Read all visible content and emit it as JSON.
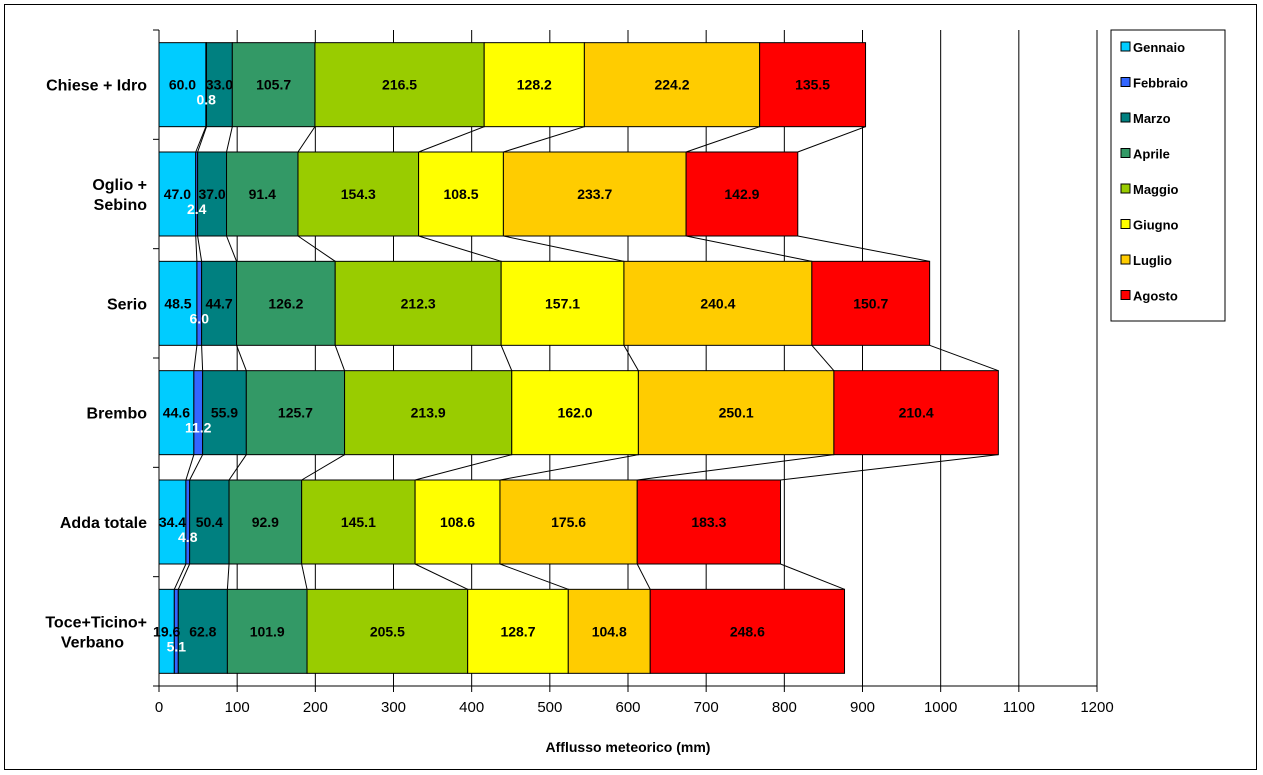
{
  "chart_data": {
    "type": "bar",
    "orientation": "horizontal",
    "stacked": true,
    "title": "",
    "xlabel": "Afflusso meteorico (mm)",
    "ylabel": "",
    "xlim": [
      0,
      1200
    ],
    "xticks": [
      "0",
      "100",
      "200",
      "300",
      "400",
      "500",
      "600",
      "700",
      "800",
      "900",
      "1000",
      "1100",
      "1200"
    ],
    "grid": true,
    "legend_position": "right",
    "categories": [
      "Chiese + Idro",
      "Oglio + Sebino",
      "Serio",
      "Brembo",
      "Adda  totale",
      "Toce+Ticino+ Verbano"
    ],
    "series": [
      {
        "name": "Gennaio",
        "color": "#00ccff",
        "values": [
          60.0,
          47.0,
          48.5,
          44.6,
          34.4,
          19.6
        ],
        "labels": [
          "60.0",
          "47.0",
          "48.5",
          "44.6",
          "34.4",
          "19.6"
        ]
      },
      {
        "name": "Febbraio",
        "color": "#3366ff",
        "values": [
          0.8,
          2.4,
          6.0,
          11.2,
          4.8,
          5.1
        ],
        "labels": [
          "0.8",
          "2.4",
          "6.0",
          "11.2",
          "4.8",
          "5.1"
        ]
      },
      {
        "name": "Marzo",
        "color": "#008080",
        "values": [
          33.0,
          37.0,
          44.7,
          55.9,
          50.4,
          62.8
        ],
        "labels": [
          "33.0",
          "37.0",
          "44.7",
          "55.9",
          "50.4",
          "62.8"
        ]
      },
      {
        "name": "Aprile",
        "color": "#339966",
        "values": [
          105.7,
          91.4,
          126.2,
          125.7,
          92.9,
          101.9
        ],
        "labels": [
          "105.7",
          "91.4",
          "126.2",
          "125.7",
          "92.9",
          "101.9"
        ]
      },
      {
        "name": "Maggio",
        "color": "#99cc00",
        "values": [
          216.5,
          154.3,
          212.3,
          213.9,
          145.1,
          205.5
        ],
        "labels": [
          "216.5",
          "154.3",
          "212.3",
          "213.9",
          "145.1",
          "205.5"
        ]
      },
      {
        "name": "Giugno",
        "color": "#ffff00",
        "values": [
          128.2,
          108.5,
          157.1,
          162.0,
          108.6,
          128.7
        ],
        "labels": [
          "128.2",
          "108.5",
          "157.1",
          "162.0",
          "108.6",
          "128.7"
        ]
      },
      {
        "name": "Luglio",
        "color": "#ffcc00",
        "values": [
          224.2,
          233.7,
          240.4,
          250.1,
          175.6,
          104.8
        ],
        "labels": [
          "224.2",
          "233.7",
          "240.4",
          "250.1",
          "175.6",
          "104.8"
        ]
      },
      {
        "name": "Agosto",
        "color": "#ff0000",
        "values": [
          135.5,
          142.9,
          150.7,
          210.4,
          183.3,
          248.6
        ],
        "labels": [
          "135.5",
          "142.9",
          "150.7",
          "210.4",
          "183.3",
          "248.6"
        ]
      }
    ]
  }
}
